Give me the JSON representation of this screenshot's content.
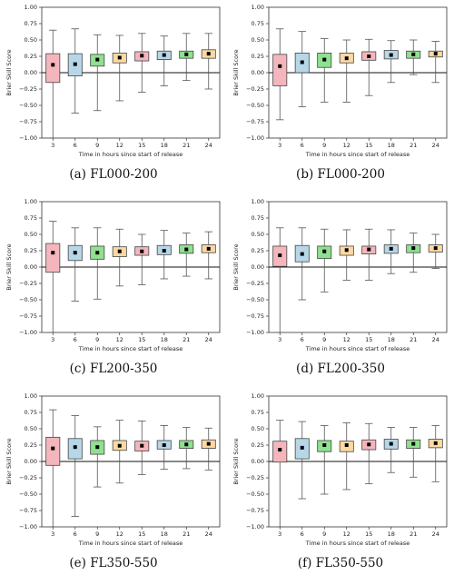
{
  "y_axis_label": "Brier Skill Score",
  "x_axis_label": "Time in hours since start of release",
  "y_ticks": [
    "1.00",
    "0.75",
    "0.50",
    "0.25",
    "0.00",
    "−0.25",
    "−0.50",
    "−0.75",
    "−1.00"
  ],
  "y_tick_values": [
    1.0,
    0.75,
    0.5,
    0.25,
    0.0,
    -0.25,
    -0.5,
    -0.75,
    -1.0
  ],
  "box_colors": [
    "#f4b6bc",
    "#b7d7e8",
    "#8fe08f",
    "#fcd9a2",
    "#f4b6bc",
    "#b7d7e8",
    "#8fe08f",
    "#fcd9a2"
  ],
  "chart_data": [
    {
      "type": "boxplot",
      "caption": "(a) FL000-200",
      "ylim": [
        -1,
        1
      ],
      "categories": [
        "3",
        "6",
        "9",
        "12",
        "15",
        "18",
        "21",
        "24"
      ],
      "boxes": [
        {
          "whislo": -1.0,
          "q1": -0.15,
          "med": 0.12,
          "q3": 0.29,
          "whishi": 0.65
        },
        {
          "whislo": -0.62,
          "q1": -0.05,
          "med": 0.13,
          "q3": 0.29,
          "whishi": 0.67
        },
        {
          "whislo": -0.58,
          "q1": 0.1,
          "med": 0.2,
          "q3": 0.28,
          "whishi": 0.58
        },
        {
          "whislo": -0.43,
          "q1": 0.15,
          "med": 0.23,
          "q3": 0.3,
          "whishi": 0.57
        },
        {
          "whislo": -0.3,
          "q1": 0.18,
          "med": 0.26,
          "q3": 0.32,
          "whishi": 0.6
        },
        {
          "whislo": -0.2,
          "q1": 0.2,
          "med": 0.27,
          "q3": 0.33,
          "whishi": 0.56
        },
        {
          "whislo": -0.12,
          "q1": 0.22,
          "med": 0.28,
          "q3": 0.33,
          "whishi": 0.6
        },
        {
          "whislo": -0.25,
          "q1": 0.22,
          "med": 0.29,
          "q3": 0.35,
          "whishi": 0.6
        }
      ]
    },
    {
      "type": "boxplot",
      "caption": "(b) FL000-200",
      "ylim": [
        -1,
        1
      ],
      "categories": [
        "3",
        "6",
        "9",
        "12",
        "15",
        "18",
        "21",
        "24"
      ],
      "boxes": [
        {
          "whislo": -0.72,
          "q1": -0.2,
          "med": 0.1,
          "q3": 0.28,
          "whishi": 0.67
        },
        {
          "whislo": -0.52,
          "q1": 0.0,
          "med": 0.16,
          "q3": 0.3,
          "whishi": 0.63
        },
        {
          "whislo": -0.45,
          "q1": 0.08,
          "med": 0.2,
          "q3": 0.3,
          "whishi": 0.52
        },
        {
          "whislo": -0.45,
          "q1": 0.15,
          "med": 0.22,
          "q3": 0.3,
          "whishi": 0.5
        },
        {
          "whislo": -0.35,
          "q1": 0.19,
          "med": 0.25,
          "q3": 0.32,
          "whishi": 0.51
        },
        {
          "whislo": -0.15,
          "q1": 0.21,
          "med": 0.27,
          "q3": 0.34,
          "whishi": 0.49
        },
        {
          "whislo": -0.03,
          "q1": 0.22,
          "med": 0.28,
          "q3": 0.33,
          "whishi": 0.5
        },
        {
          "whislo": -0.15,
          "q1": 0.24,
          "med": 0.29,
          "q3": 0.33,
          "whishi": 0.48
        }
      ]
    },
    {
      "type": "boxplot",
      "caption": "(c) FL200-350",
      "ylim": [
        -1,
        1
      ],
      "categories": [
        "3",
        "6",
        "9",
        "12",
        "15",
        "18",
        "21",
        "24"
      ],
      "boxes": [
        {
          "whislo": -1.0,
          "q1": -0.08,
          "med": 0.22,
          "q3": 0.36,
          "whishi": 0.7
        },
        {
          "whislo": -0.52,
          "q1": 0.1,
          "med": 0.22,
          "q3": 0.33,
          "whishi": 0.6
        },
        {
          "whislo": -0.49,
          "q1": 0.12,
          "med": 0.22,
          "q3": 0.32,
          "whishi": 0.6
        },
        {
          "whislo": -0.29,
          "q1": 0.16,
          "med": 0.24,
          "q3": 0.31,
          "whishi": 0.58
        },
        {
          "whislo": -0.27,
          "q1": 0.18,
          "med": 0.24,
          "q3": 0.31,
          "whishi": 0.5
        },
        {
          "whislo": -0.18,
          "q1": 0.19,
          "med": 0.25,
          "q3": 0.33,
          "whishi": 0.56
        },
        {
          "whislo": -0.14,
          "q1": 0.21,
          "med": 0.27,
          "q3": 0.34,
          "whishi": 0.52
        },
        {
          "whislo": -0.18,
          "q1": 0.22,
          "med": 0.28,
          "q3": 0.34,
          "whishi": 0.54
        }
      ]
    },
    {
      "type": "boxplot",
      "caption": "(d) FL200-350",
      "ylim": [
        -1,
        1
      ],
      "categories": [
        "3",
        "6",
        "9",
        "12",
        "15",
        "18",
        "21",
        "24"
      ],
      "boxes": [
        {
          "whislo": -1.0,
          "q1": 0.01,
          "med": 0.18,
          "q3": 0.32,
          "whishi": 0.6
        },
        {
          "whislo": -0.5,
          "q1": 0.08,
          "med": 0.2,
          "q3": 0.33,
          "whishi": 0.6
        },
        {
          "whislo": -0.38,
          "q1": 0.13,
          "med": 0.24,
          "q3": 0.32,
          "whishi": 0.58
        },
        {
          "whislo": -0.2,
          "q1": 0.18,
          "med": 0.26,
          "q3": 0.32,
          "whishi": 0.57
        },
        {
          "whislo": -0.2,
          "q1": 0.2,
          "med": 0.27,
          "q3": 0.32,
          "whishi": 0.58
        },
        {
          "whislo": -0.1,
          "q1": 0.21,
          "med": 0.28,
          "q3": 0.34,
          "whishi": 0.57
        },
        {
          "whislo": -0.08,
          "q1": 0.22,
          "med": 0.29,
          "q3": 0.34,
          "whishi": 0.52
        },
        {
          "whislo": -0.02,
          "q1": 0.23,
          "med": 0.29,
          "q3": 0.34,
          "whishi": 0.5
        }
      ]
    },
    {
      "type": "boxplot",
      "caption": "(e) FL350-550",
      "ylim": [
        -1,
        1
      ],
      "categories": [
        "3",
        "6",
        "9",
        "12",
        "15",
        "18",
        "21",
        "24"
      ],
      "boxes": [
        {
          "whislo": -1.0,
          "q1": -0.06,
          "med": 0.2,
          "q3": 0.37,
          "whishi": 0.79
        },
        {
          "whislo": -0.84,
          "q1": 0.04,
          "med": 0.22,
          "q3": 0.35,
          "whishi": 0.7
        },
        {
          "whislo": -0.39,
          "q1": 0.11,
          "med": 0.22,
          "q3": 0.32,
          "whishi": 0.53
        },
        {
          "whislo": -0.33,
          "q1": 0.17,
          "med": 0.24,
          "q3": 0.32,
          "whishi": 0.63
        },
        {
          "whislo": -0.2,
          "q1": 0.16,
          "med": 0.24,
          "q3": 0.31,
          "whishi": 0.62
        },
        {
          "whislo": -0.12,
          "q1": 0.19,
          "med": 0.25,
          "q3": 0.32,
          "whishi": 0.55
        },
        {
          "whislo": -0.11,
          "q1": 0.2,
          "med": 0.26,
          "q3": 0.32,
          "whishi": 0.52
        },
        {
          "whislo": -0.13,
          "q1": 0.2,
          "med": 0.27,
          "q3": 0.33,
          "whishi": 0.51
        }
      ]
    },
    {
      "type": "boxplot",
      "caption": "(f) FL350-550",
      "ylim": [
        -1,
        1
      ],
      "categories": [
        "3",
        "6",
        "9",
        "12",
        "15",
        "18",
        "21",
        "24"
      ],
      "boxes": [
        {
          "whislo": -1.0,
          "q1": -0.01,
          "med": 0.18,
          "q3": 0.31,
          "whishi": 0.63
        },
        {
          "whislo": -0.57,
          "q1": 0.04,
          "med": 0.21,
          "q3": 0.35,
          "whishi": 0.61
        },
        {
          "whislo": -0.5,
          "q1": 0.15,
          "med": 0.25,
          "q3": 0.32,
          "whishi": 0.55
        },
        {
          "whislo": -0.43,
          "q1": 0.15,
          "med": 0.25,
          "q3": 0.31,
          "whishi": 0.59
        },
        {
          "whislo": -0.34,
          "q1": 0.18,
          "med": 0.26,
          "q3": 0.33,
          "whishi": 0.58
        },
        {
          "whislo": -0.17,
          "q1": 0.19,
          "med": 0.27,
          "q3": 0.34,
          "whishi": 0.52
        },
        {
          "whislo": -0.24,
          "q1": 0.2,
          "med": 0.27,
          "q3": 0.33,
          "whishi": 0.52
        },
        {
          "whislo": -0.31,
          "q1": 0.21,
          "med": 0.28,
          "q3": 0.34,
          "whishi": 0.55
        }
      ]
    }
  ]
}
